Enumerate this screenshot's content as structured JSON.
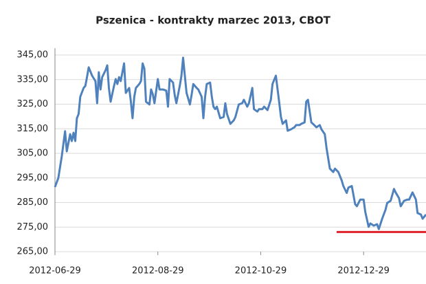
{
  "chart_data": {
    "type": "line",
    "title": "Pszenica - kontrakty marzec 2013, CBOT",
    "x": [
      "2012-06-29",
      "2012-07-01",
      "2012-07-03",
      "2012-07-05",
      "2012-07-06",
      "2012-07-08",
      "2012-07-09",
      "2012-07-10",
      "2012-07-11",
      "2012-07-12",
      "2012-07-13",
      "2012-07-14",
      "2012-07-16",
      "2012-07-17",
      "2012-07-18",
      "2012-07-19",
      "2012-07-21",
      "2012-07-23",
      "2012-07-24",
      "2012-07-25",
      "2012-07-26",
      "2012-07-27",
      "2012-07-29",
      "2012-07-30",
      "2012-07-31",
      "2012-08-01",
      "2012-08-03",
      "2012-08-04",
      "2012-08-05",
      "2012-08-06",
      "2012-08-07",
      "2012-08-09",
      "2012-08-10",
      "2012-08-12",
      "2012-08-13",
      "2012-08-14",
      "2012-08-15",
      "2012-08-16",
      "2012-08-18",
      "2012-08-19",
      "2012-08-20",
      "2012-08-21",
      "2012-08-22",
      "2012-08-24",
      "2012-08-25",
      "2012-08-26",
      "2012-08-27",
      "2012-08-29",
      "2012-08-30",
      "2012-09-01",
      "2012-09-03",
      "2012-09-04",
      "2012-09-05",
      "2012-09-07",
      "2012-09-08",
      "2012-09-09",
      "2012-09-11",
      "2012-09-12",
      "2012-09-13",
      "2012-09-14",
      "2012-09-15",
      "2012-09-17",
      "2012-09-18",
      "2012-09-19",
      "2012-09-21",
      "2012-09-22",
      "2012-09-24",
      "2012-09-25",
      "2012-09-26",
      "2012-09-27",
      "2012-09-29",
      "2012-09-30",
      "2012-10-01",
      "2012-10-02",
      "2012-10-03",
      "2012-10-05",
      "2012-10-07",
      "2012-10-08",
      "2012-10-09",
      "2012-10-11",
      "2012-10-13",
      "2012-10-14",
      "2012-10-16",
      "2012-10-18",
      "2012-10-19",
      "2012-10-21",
      "2012-10-22",
      "2012-10-24",
      "2012-10-25",
      "2012-10-27",
      "2012-10-28",
      "2012-10-30",
      "2012-10-31",
      "2012-11-02",
      "2012-11-04",
      "2012-11-05",
      "2012-11-07",
      "2012-11-08",
      "2012-11-09",
      "2012-11-10",
      "2012-11-11",
      "2012-11-13",
      "2012-11-14",
      "2012-11-16",
      "2012-11-18",
      "2012-11-19",
      "2012-11-21",
      "2012-11-22",
      "2012-11-24",
      "2012-11-25",
      "2012-11-26",
      "2012-11-28",
      "2012-11-29",
      "2012-12-01",
      "2012-12-03",
      "2012-12-04",
      "2012-12-06",
      "2012-12-07",
      "2012-12-09",
      "2012-12-11",
      "2012-12-12",
      "2012-12-14",
      "2012-12-16",
      "2012-12-17",
      "2012-12-19",
      "2012-12-20",
      "2012-12-22",
      "2012-12-24",
      "2012-12-25",
      "2012-12-27",
      "2012-12-29",
      "2012-12-30",
      "2013-01-01",
      "2013-01-02",
      "2013-01-04",
      "2013-01-06",
      "2013-01-07",
      "2013-01-09",
      "2013-01-11",
      "2013-01-12",
      "2013-01-14",
      "2013-01-16",
      "2013-01-17",
      "2013-01-19",
      "2013-01-20",
      "2013-01-22",
      "2013-01-24",
      "2013-01-25",
      "2013-01-27",
      "2013-01-29",
      "2013-01-30",
      "2013-02-01",
      "2013-02-02",
      "2013-02-04"
    ],
    "series": [
      {
        "color": "#4f81bd",
        "values": [
          291.3,
          295,
          303.6,
          314,
          305.8,
          312.8,
          310,
          313.4,
          310,
          319.3,
          321,
          328,
          331.6,
          332.4,
          336,
          340,
          336.6,
          334.4,
          325.4,
          338,
          331,
          336,
          338.8,
          340.8,
          331.6,
          326,
          332.4,
          335.2,
          333.2,
          336,
          334.4,
          341.6,
          329.6,
          331.6,
          326,
          319.3,
          328,
          331.6,
          333.2,
          334.4,
          341.6,
          339.4,
          326,
          324.9,
          331,
          329,
          325.4,
          335.2,
          331,
          331,
          330.5,
          324,
          335.2,
          333.8,
          328.7,
          325.4,
          332.4,
          336.6,
          343.9,
          336.6,
          329.6,
          324.9,
          328.7,
          333.2,
          331.6,
          331,
          328,
          319.3,
          328,
          333.2,
          333.8,
          328,
          324,
          323,
          324,
          319.3,
          319.8,
          325.4,
          321,
          317,
          318.4,
          319.8,
          324.9,
          325.4,
          326.8,
          324,
          325.4,
          331.6,
          323,
          322,
          323,
          323,
          324,
          322.6,
          326.8,
          333.2,
          336.6,
          331,
          325.4,
          319.8,
          317,
          318.4,
          314.2,
          314.8,
          315.6,
          316.5,
          316.5,
          317,
          317.6,
          326,
          326.8,
          317.6,
          317,
          315.6,
          316.5,
          314.8,
          312.8,
          307.2,
          298.8,
          297.4,
          298.8,
          297.4,
          294,
          291.7,
          288.9,
          291.1,
          291.7,
          284.3,
          283.5,
          286.2,
          286.2,
          281.2,
          275.1,
          276.5,
          275.6,
          276.2,
          274.2,
          278.4,
          282.1,
          284.8,
          285.7,
          290.5,
          289.1,
          286.8,
          283.5,
          285.7,
          286.2,
          286.2,
          289.1,
          286.2,
          280.7,
          280.1,
          278.4,
          280.1
        ]
      }
    ],
    "hline": {
      "value": 273,
      "color": "#e0202a",
      "x": [
        "2012-12-13",
        "2013-02-04"
      ]
    },
    "xlim": [
      "2012-06-29",
      "2013-02-04"
    ],
    "xticks": [
      "2012-06-29",
      "2012-08-29",
      "2012-10-29",
      "2012-12-29"
    ],
    "ylim": [
      265,
      345
    ],
    "yticks": [
      {
        "value": 265,
        "label": "265,00"
      },
      {
        "value": 275,
        "label": "275,00"
      },
      {
        "value": 285,
        "label": "285,00"
      },
      {
        "value": 295,
        "label": "295,00"
      },
      {
        "value": 305,
        "label": "305,00"
      },
      {
        "value": 315,
        "label": "315,00"
      },
      {
        "value": 325,
        "label": "325,00"
      },
      {
        "value": 335,
        "label": "335,00"
      },
      {
        "value": 345,
        "label": "345,00"
      }
    ],
    "grid": true
  }
}
